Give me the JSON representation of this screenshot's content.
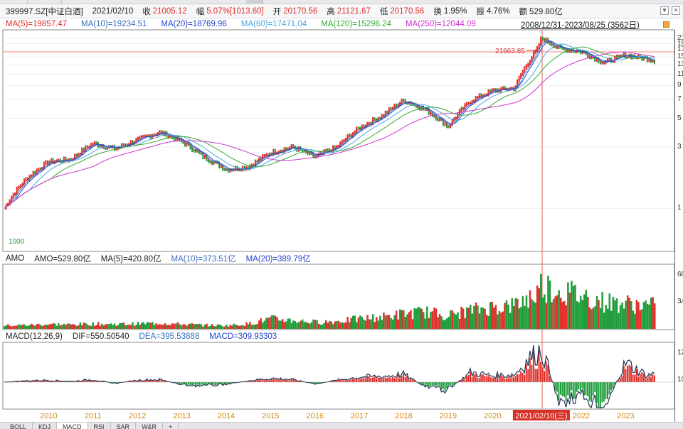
{
  "info_bar": {
    "symbol": "399997.SZ[中证白酒]",
    "date": "2021/02/10",
    "close_label": "收",
    "close_value": "21005.12",
    "change_label": "幅",
    "change_value": "5.07%[1013.60]",
    "open_label": "开",
    "open_value": "20170.56",
    "high_label": "高",
    "high_value": "21121.67",
    "low_label": "低",
    "low_value": "20170.56",
    "turnover_label": "换",
    "turnover_value": "1.95%",
    "amplitude_label": "振",
    "amplitude_value": "4.76%",
    "amount_label": "额",
    "amount_value": "529.80亿"
  },
  "ma_bar": {
    "ma5": "MA(5)=19857.47",
    "ma10": "MA(10)=19234.51",
    "ma20": "MA(20)=18769.96",
    "ma60": "MA(60)=17471.04",
    "ma120": "MA(120)=15296.24",
    "ma250": "MA(250)=12044.09"
  },
  "range_label": "2008/12/31-2023/08/25 (3562日)",
  "price_chart": {
    "high_marker": "21663.85",
    "start_marker": "1000",
    "right_ticks": [
      "21",
      "19",
      "17",
      "15",
      "13",
      "11",
      "9",
      "7",
      "5",
      "3",
      "1"
    ]
  },
  "amo_bar": {
    "title": "AMO",
    "amo": "AMO=529.80亿",
    "ma5": "MA(5)=420.80亿",
    "ma10": "MA(10)=373.51亿",
    "ma20": "MA(20)=389.79亿",
    "right_ticks": [
      "68",
      "34"
    ]
  },
  "macd_bar": {
    "title": "MACD(12,26,9)",
    "dif": "DIF=550.50540",
    "dea": "DEA=395.53888",
    "macd": "MACD=309.93303",
    "right_ticks": [
      "12",
      "10"
    ]
  },
  "x_axis": {
    "years": [
      "2010",
      "2011",
      "2012",
      "2013",
      "2014",
      "2015",
      "2016",
      "2017",
      "2018",
      "2019",
      "2020",
      "2021/02/10(三)",
      "2022",
      "2023"
    ]
  },
  "tabs": [
    "BOLL",
    "KDJ",
    "MACD",
    "RSI",
    "SAR",
    "W&R"
  ],
  "colors": {
    "ma5": "#e0302a",
    "ma10": "#3a7bd5",
    "ma20": "#2244cc",
    "ma60": "#4aa8e0",
    "ma120": "#33aa33",
    "ma250": "#cc33cc",
    "up": "#e0302a",
    "down": "#1f9d3a"
  },
  "chart_data": {
    "type": "line",
    "x": [
      2009.0,
      2009.5,
      2010.0,
      2010.5,
      2011.0,
      2011.5,
      2012.0,
      2012.5,
      2013.0,
      2013.5,
      2014.0,
      2014.5,
      2015.0,
      2015.5,
      2016.0,
      2016.5,
      2017.0,
      2017.5,
      2018.0,
      2018.5,
      2019.0,
      2019.5,
      2020.0,
      2020.5,
      2021.0,
      2021.1,
      2021.5,
      2022.0,
      2022.5,
      2023.0,
      2023.5,
      2023.65
    ],
    "series": [
      {
        "name": "Close",
        "values": [
          1000,
          1700,
          2300,
          2400,
          3200,
          2900,
          3400,
          3900,
          3300,
          2500,
          2000,
          2100,
          2700,
          3000,
          2500,
          3000,
          4200,
          5200,
          6900,
          5800,
          4300,
          6800,
          8200,
          8600,
          17000,
          21005,
          17500,
          16500,
          13500,
          15500,
          14500,
          14000
        ]
      }
    ],
    "ylim": [
      500,
      22000
    ],
    "high": 21663.85,
    "amo": [
      40,
      45,
      55,
      50,
      60,
      55,
      60,
      70,
      55,
      45,
      40,
      60,
      120,
      100,
      80,
      90,
      120,
      140,
      180,
      200,
      160,
      220,
      260,
      280,
      420,
      529.8,
      450,
      400,
      320,
      300,
      280,
      270
    ],
    "macd_dif": [
      0,
      20,
      30,
      10,
      40,
      -20,
      30,
      40,
      -40,
      -60,
      -30,
      20,
      60,
      40,
      -30,
      30,
      80,
      90,
      120,
      -80,
      -120,
      150,
      100,
      120,
      500,
      550.5,
      -300,
      -200,
      -400,
      300,
      100,
      150
    ]
  }
}
